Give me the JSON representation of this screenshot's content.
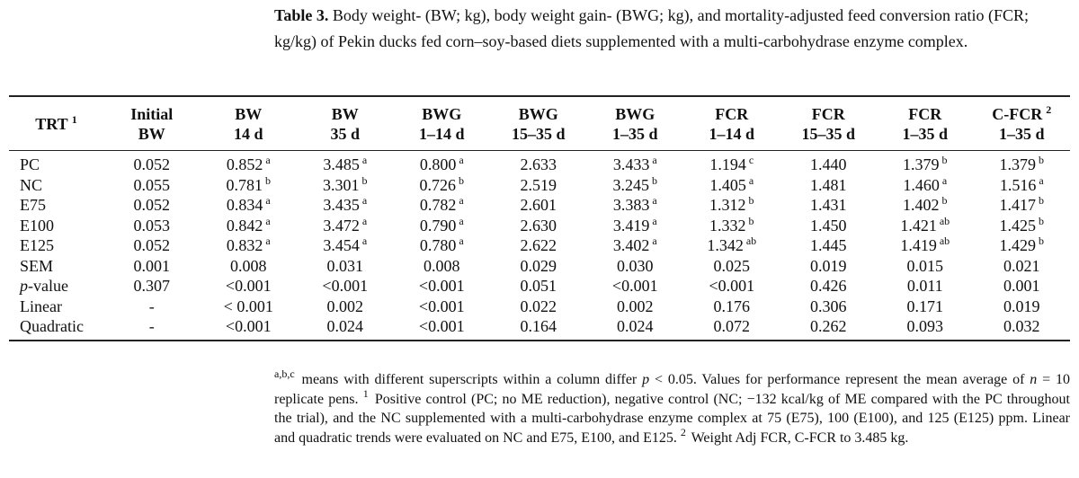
{
  "caption": [
    {
      "b": "Table 3."
    },
    " Body weight- (BW; kg), body weight gain- (BWG; kg), and mortality-adjusted feed conversion ratio (FCR; kg/kg) of Pekin ducks fed corn–soy-based diets supplemented with a multi-carbohydrase enzyme complex."
  ],
  "table": {
    "header": [
      {
        "lines": [
          [
            "TRT",
            {
              "sup": "1"
            }
          ]
        ]
      },
      {
        "lines": [
          "Initial",
          "BW"
        ]
      },
      {
        "lines": [
          "BW",
          "14 d"
        ]
      },
      {
        "lines": [
          "BW",
          "35 d"
        ]
      },
      {
        "lines": [
          "BWG",
          "1–14 d"
        ]
      },
      {
        "lines": [
          "BWG",
          "15–35 d"
        ]
      },
      {
        "lines": [
          "BWG",
          "1–35 d"
        ]
      },
      {
        "lines": [
          "FCR",
          "1–14 d"
        ]
      },
      {
        "lines": [
          "FCR",
          "15–35 d"
        ]
      },
      {
        "lines": [
          "FCR",
          "1–35 d"
        ]
      },
      {
        "lines": [
          [
            "C-FCR",
            {
              "sup": "2"
            }
          ],
          "1–35 d"
        ]
      }
    ],
    "rows": [
      {
        "label": "PC",
        "cells": [
          "0.052",
          [
            "0.852",
            {
              "sup": "a"
            }
          ],
          [
            "3.485",
            {
              "sup": "a"
            }
          ],
          [
            "0.800",
            {
              "sup": "a"
            }
          ],
          "2.633",
          [
            "3.433",
            {
              "sup": "a"
            }
          ],
          [
            "1.194",
            {
              "sup": "c"
            }
          ],
          "1.440",
          [
            "1.379",
            {
              "sup": "b"
            }
          ],
          [
            "1.379",
            {
              "sup": "b"
            }
          ]
        ]
      },
      {
        "label": "NC",
        "cells": [
          "0.055",
          [
            "0.781",
            {
              "sup": "b"
            }
          ],
          [
            "3.301",
            {
              "sup": "b"
            }
          ],
          [
            "0.726",
            {
              "sup": "b"
            }
          ],
          "2.519",
          [
            "3.245",
            {
              "sup": "b"
            }
          ],
          [
            "1.405",
            {
              "sup": "a"
            }
          ],
          "1.481",
          [
            "1.460",
            {
              "sup": "a"
            }
          ],
          [
            "1.516",
            {
              "sup": "a"
            }
          ]
        ]
      },
      {
        "label": "E75",
        "cells": [
          "0.052",
          [
            "0.834",
            {
              "sup": "a"
            }
          ],
          [
            "3.435",
            {
              "sup": "a"
            }
          ],
          [
            "0.782",
            {
              "sup": "a"
            }
          ],
          "2.601",
          [
            "3.383",
            {
              "sup": "a"
            }
          ],
          [
            "1.312",
            {
              "sup": "b"
            }
          ],
          "1.431",
          [
            "1.402",
            {
              "sup": "b"
            }
          ],
          [
            "1.417",
            {
              "sup": "b"
            }
          ]
        ]
      },
      {
        "label": "E100",
        "cells": [
          "0.053",
          [
            "0.842",
            {
              "sup": "a"
            }
          ],
          [
            "3.472",
            {
              "sup": "a"
            }
          ],
          [
            "0.790",
            {
              "sup": "a"
            }
          ],
          "2.630",
          [
            "3.419",
            {
              "sup": "a"
            }
          ],
          [
            "1.332",
            {
              "sup": "b"
            }
          ],
          "1.450",
          [
            "1.421",
            {
              "sup": "ab"
            }
          ],
          [
            "1.425",
            {
              "sup": "b"
            }
          ]
        ]
      },
      {
        "label": "E125",
        "cells": [
          "0.052",
          [
            "0.832",
            {
              "sup": "a"
            }
          ],
          [
            "3.454",
            {
              "sup": "a"
            }
          ],
          [
            "0.780",
            {
              "sup": "a"
            }
          ],
          "2.622",
          [
            "3.402",
            {
              "sup": "a"
            }
          ],
          [
            "1.342",
            {
              "sup": "ab"
            }
          ],
          "1.445",
          [
            "1.419",
            {
              "sup": "ab"
            }
          ],
          [
            "1.429",
            {
              "sup": "b"
            }
          ]
        ]
      },
      {
        "label": "SEM",
        "cells": [
          "0.001",
          "0.008",
          "0.031",
          "0.008",
          "0.029",
          "0.030",
          "0.025",
          "0.019",
          "0.015",
          "0.021"
        ]
      },
      {
        "label": [
          {
            "i": "p"
          },
          "-value"
        ],
        "cells": [
          "0.307",
          "<0.001",
          "<0.001",
          "<0.001",
          "0.051",
          "<0.001",
          "<0.001",
          "0.426",
          "0.011",
          "0.001"
        ]
      },
      {
        "label": "Linear",
        "cells": [
          "-",
          "< 0.001",
          "0.002",
          "<0.001",
          "0.022",
          "0.002",
          "0.176",
          "0.306",
          "0.171",
          "0.019"
        ]
      },
      {
        "label": "Quadratic",
        "cells": [
          "-",
          "<0.001",
          "0.024",
          "<0.001",
          "0.164",
          "0.024",
          "0.072",
          "0.262",
          "0.093",
          "0.032"
        ]
      }
    ]
  },
  "footnote": [
    {
      "sup": "a,b,c"
    },
    " means with different superscripts within a column differ ",
    {
      "i": "p"
    },
    " < 0.05. Values for performance represent the mean average of ",
    {
      "i": "n"
    },
    " = 10 replicate pens. ",
    {
      "sup": "1"
    },
    " Positive control (PC; no ME reduction), negative control (NC; −132 kcal/kg of ME compared with the PC throughout the trial), and the NC supplemented with a multi-carbohydrase enzyme complex at 75 (E75), 100 (E100), and 125 (E125) ppm. Linear and quadratic trends were evaluated on NC and E75, E100, and E125. ",
    {
      "sup": "2"
    },
    " Weight Adj FCR, C-FCR to 3.485 kg."
  ]
}
